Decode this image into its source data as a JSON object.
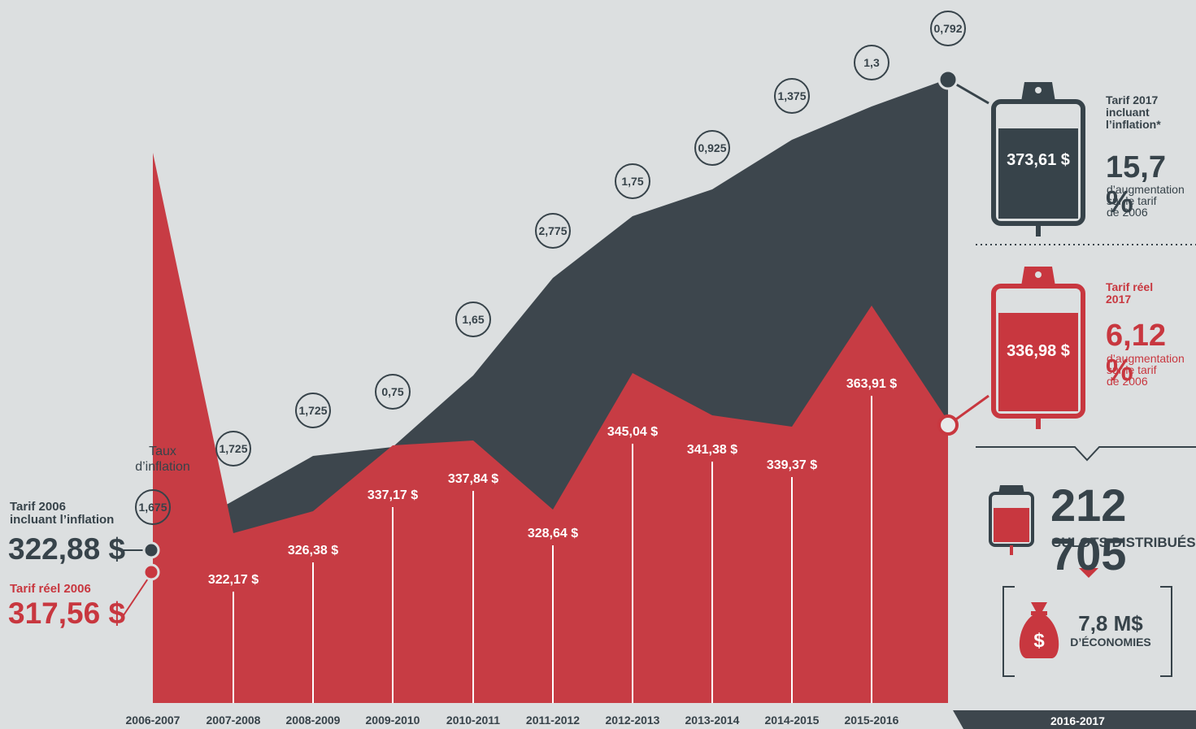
{
  "colors": {
    "background": "#dcdfe0",
    "inflation_area": "#3d464d",
    "real_area": "#c73c44",
    "text_dark": "#37434a",
    "accent_red": "#c8373f"
  },
  "chart_data": {
    "type": "area",
    "categories": [
      "2006-2007",
      "2007-2008",
      "2008-2009",
      "2009-2010",
      "2010-2011",
      "2011-2012",
      "2012-2013",
      "2013-2014",
      "2014-2015",
      "2015-2016",
      "2016-2017"
    ],
    "series": [
      {
        "values": [
          322.88,
          null,
          null,
          null,
          null,
          null,
          null,
          null,
          null,
          null,
          373.61
        ]
      },
      {
        "values": [
          317.56,
          322.17,
          326.38,
          337.17,
          337.84,
          328.64,
          345.04,
          341.38,
          339.37,
          363.91,
          336.98
        ]
      }
    ],
    "value_labels": [
      "322,17 $",
      "326,38 $",
      "337,17 $",
      "337,84 $",
      "328,64 $",
      "345,04 $",
      "341,38 $",
      "339,37 $",
      "363,91 $"
    ],
    "inflation_rates": [
      "1,675",
      "1,725",
      "1,725",
      "0,75",
      "1,65",
      "2,775",
      "1,75",
      "0,925",
      "1,375",
      "1,3",
      "0,792"
    ],
    "inflation_rate_values": [
      1.675,
      1.725,
      1.725,
      0.75,
      1.65,
      2.775,
      1.75,
      0.925,
      1.375,
      1.3,
      0.792
    ],
    "inflation_title": "Taux d’inflation"
  },
  "left": {
    "tarif_2006_incl_label_1": "Tarif 2006",
    "tarif_2006_incl_label_2": "incluant l’inflation",
    "tarif_2006_incl_value": "322,88 $",
    "tarif_2006_reel_label": "Tarif réel 2006",
    "tarif_2006_reel_value": "317,56 $"
  },
  "right": {
    "bag1_value": "373,61 $",
    "bag1_label_1": "Tarif 2017",
    "bag1_label_2": "incluant",
    "bag1_label_3": "l’inflation*",
    "bag1_pct": "15,7 %",
    "bag1_desc_1": "d’augmentation",
    "bag1_desc_2": "sur le tarif",
    "bag1_desc_3": "de 2006",
    "bag2_value": "336,98 $",
    "bag2_label_1": "Tarif réel",
    "bag2_label_2": "2017",
    "bag2_pct": "6,12 %",
    "bag2_desc_1": "d’augmentation",
    "bag2_desc_2": "sur le tarif",
    "bag2_desc_3": "de 2006",
    "units_value": "212 705",
    "units_label": "CULOTS DISTRIBUÉS",
    "savings_value": "7,8 M$",
    "savings_label": "D’ÉCONOMIES",
    "last_year": "2016-2017"
  }
}
